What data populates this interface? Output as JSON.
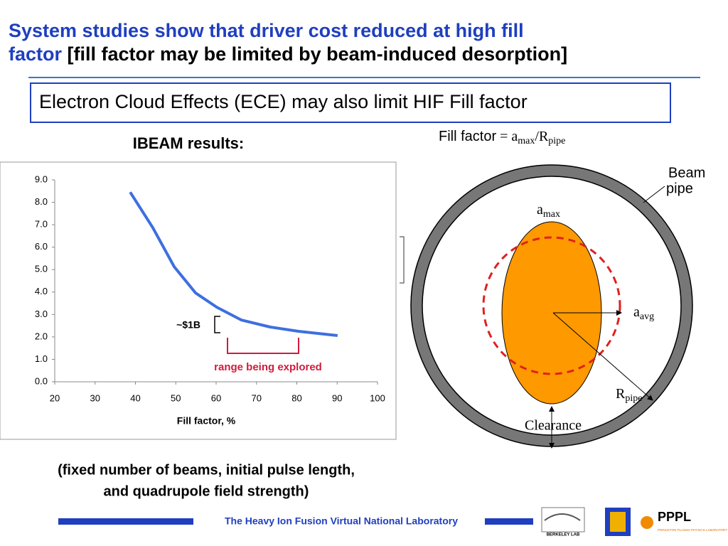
{
  "title": {
    "line1": "System studies show that driver cost reduced at high fill",
    "line2_blue": "factor",
    "line2_black": "[fill factor may be limited by beam-induced desorption]"
  },
  "box": "Electron Cloud Effects (ECE) may also limit HIF Fill factor",
  "chart_heading": "IBEAM results:",
  "chart_data": {
    "type": "line",
    "x_label": "Fill factor, %",
    "x": [
      38.7,
      44.3,
      49.6,
      54.9,
      60.2,
      66.3,
      73.4,
      80.4,
      90.1
    ],
    "series": [
      {
        "color": "#3d6fe0",
        "values": [
          8.45,
          6.87,
          5.13,
          3.96,
          3.32,
          2.75,
          2.44,
          2.25,
          2.06
        ]
      }
    ],
    "xlim": [
      20,
      100
    ],
    "xticks": [
      20,
      30,
      40,
      50,
      60,
      70,
      80,
      90,
      100
    ],
    "ylim": [
      0,
      9
    ],
    "yticks": [
      {
        "value": 0,
        "label": "0.0"
      },
      {
        "value": 1,
        "label": "1.0"
      },
      {
        "value": 2,
        "label": "2.0"
      },
      {
        "value": 3,
        "label": "3.0"
      },
      {
        "value": 4,
        "label": "4.0"
      },
      {
        "value": 5,
        "label": "5.0"
      },
      {
        "value": 6,
        "label": "6.0"
      },
      {
        "value": 7,
        "label": "7.0"
      },
      {
        "value": 8,
        "label": "8.0"
      },
      {
        "value": 9,
        "label": "9.0"
      }
    ],
    "annotations": {
      "cost": "~$1B",
      "range": "range being explored"
    }
  },
  "caption": {
    "line1": "(fixed number of beams, initial pulse length,",
    "line2": "and quadrupole field strength)"
  },
  "formula": {
    "text": "Fill factor",
    "eq": " = a",
    "sub1": "max",
    "mid": "/R",
    "sub2": "pipe"
  },
  "diagram": {
    "beam_pipe_1": "Beam",
    "beam_pipe_2": "pipe",
    "amax": "a",
    "amax_sub": "max",
    "aavg": "a",
    "aavg_sub": "avg",
    "rpipe": "R",
    "rpipe_sub": "pipe",
    "clearance": "Clearance"
  },
  "footer": {
    "text": "The Heavy Ion Fusion Virtual National Laboratory",
    "berkeley": "BERKELEY LAB",
    "pppl": "PPPL",
    "pppl_sub": "PRINCETON PLASMA PHYSICS LABORATORY"
  }
}
